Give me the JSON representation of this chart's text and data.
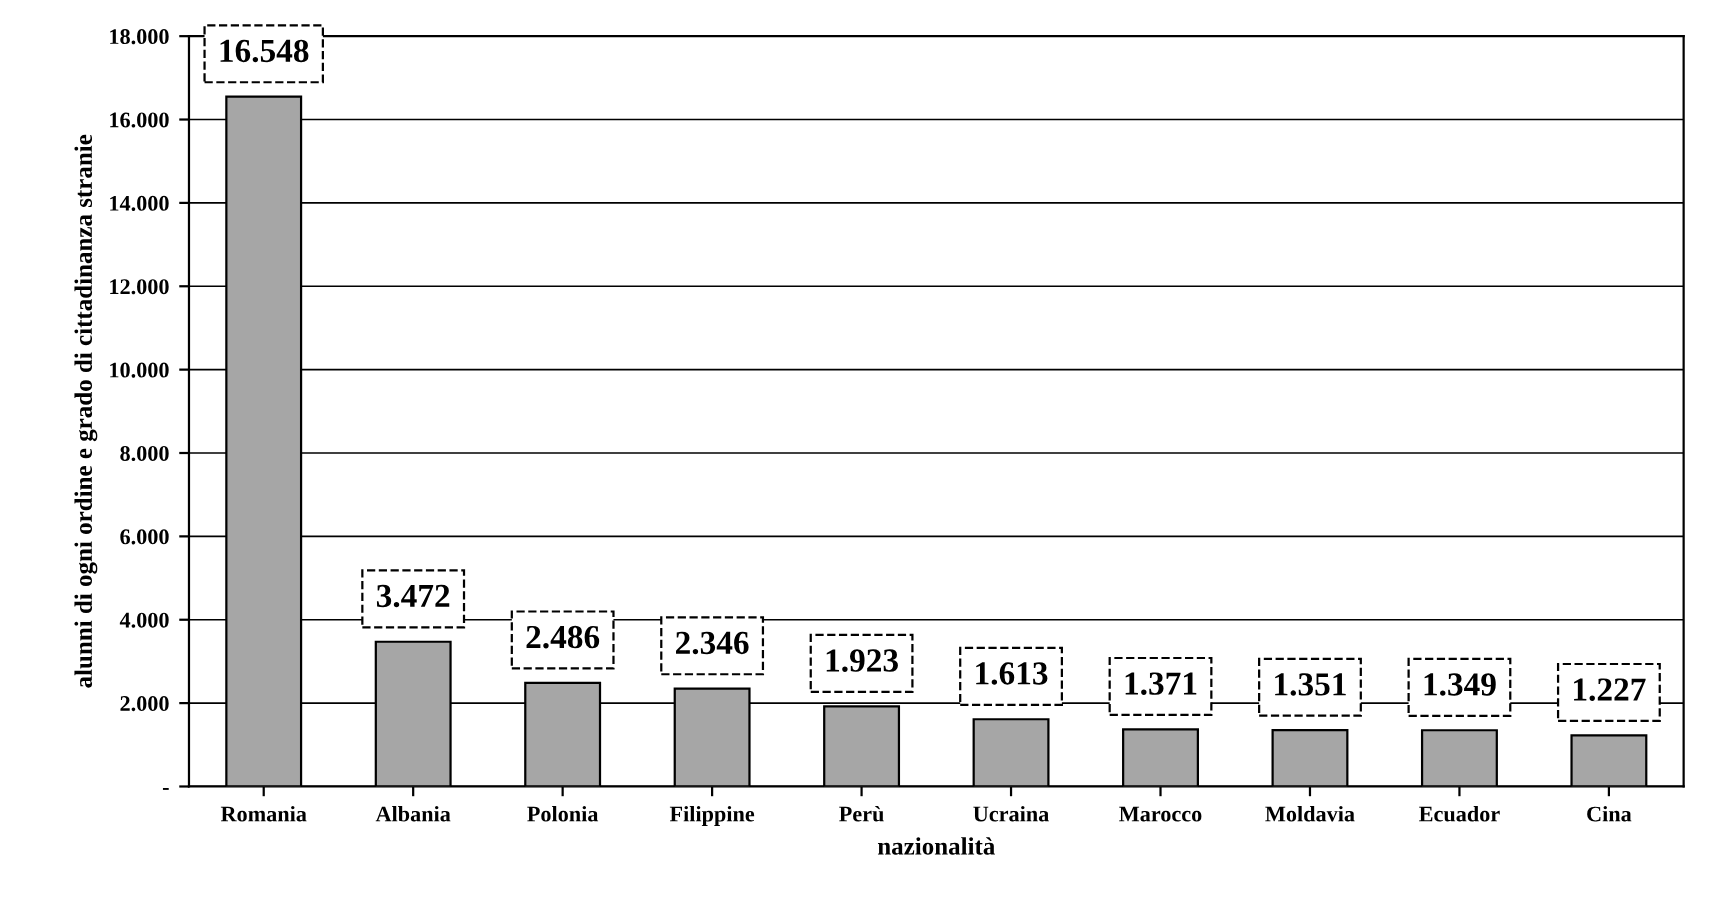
{
  "chart_data": {
    "type": "bar",
    "xlabel": "nazionalità",
    "ylabel": "alunni di ogni ordine e grado di cittadinanza stranie",
    "categories": [
      "Romania",
      "Albania",
      "Polonia",
      "Filippine",
      "Perù",
      "Ucraina",
      "Marocco",
      "Moldavia",
      "Ecuador",
      "Cina"
    ],
    "values": [
      16548,
      3472,
      2486,
      2346,
      1923,
      1613,
      1371,
      1351,
      1349,
      1227
    ],
    "value_labels": [
      "16.548",
      "3.472",
      "2.486",
      "2.346",
      "1.923",
      "1.613",
      "1.371",
      "1.351",
      "1.349",
      "1.227"
    ],
    "color": "#a6a6a6",
    "ylim": [
      0,
      18000
    ],
    "yticks": [
      {
        "value": 0,
        "label": "-"
      },
      {
        "value": 2000,
        "label": "2.000"
      },
      {
        "value": 4000,
        "label": "4.000"
      },
      {
        "value": 6000,
        "label": "6.000"
      },
      {
        "value": 8000,
        "label": "8.000"
      },
      {
        "value": 10000,
        "label": "10.000"
      },
      {
        "value": 12000,
        "label": "12.000"
      },
      {
        "value": 14000,
        "label": "14.000"
      },
      {
        "value": 16000,
        "label": "16.000"
      },
      {
        "value": 18000,
        "label": "18.000"
      }
    ],
    "grid": "y"
  }
}
